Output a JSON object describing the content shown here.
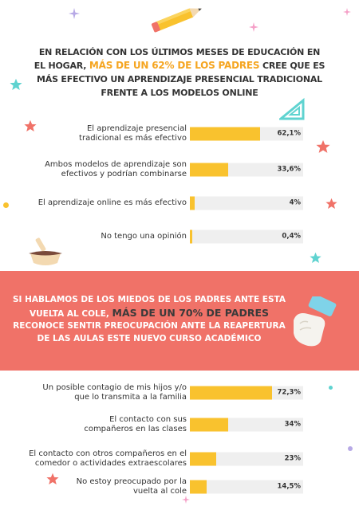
{
  "intro": {
    "pre": "En relación con los últimos meses de educación en el hogar, ",
    "highlight": "más de un 62% de los padres",
    "post": " cree que es más efectivo un aprendizaje presencial tradicional frente a los modelos online"
  },
  "fears": {
    "pre": "Si hablamos de los miedos de los padres ante esta vuelta al cole, ",
    "highlight": "más de un 70% de padres",
    "post": " reconoce sentir preocupación ante la reapertura de las aulas este nuevo curso académico"
  },
  "colors": {
    "bar": "#f9c22e",
    "track": "#efefef",
    "band": "#f07268",
    "highlight": "#f5a520"
  },
  "chart_data": [
    {
      "type": "bar",
      "orientation": "horizontal",
      "categories": [
        "El aprendizaje presencial tradicional es más efectivo",
        "Ambos modelos de aprendizaje son efectivos y podrían combinarse",
        "El aprendizaje online es más efectivo",
        "No tengo una opinión"
      ],
      "values": [
        62.1,
        33.6,
        4,
        0.4
      ],
      "value_labels": [
        "62,1%",
        "33,6%",
        "4%",
        "0,4%"
      ],
      "xlim": [
        0,
        100
      ]
    },
    {
      "type": "bar",
      "orientation": "horizontal",
      "categories": [
        "Un posible contagio de mis hijos y/o que lo transmita a la familia",
        "El contacto con sus compañeros en las clases",
        "El contacto con otros compañeros en el comedor o actividades extraescolares",
        "No estoy preocupado por la vuelta al cole"
      ],
      "values": [
        72.3,
        34,
        23,
        14.5
      ],
      "value_labels": [
        "72,3%",
        "34%",
        "23%",
        "14,5%"
      ],
      "xlim": [
        0,
        100
      ]
    }
  ]
}
